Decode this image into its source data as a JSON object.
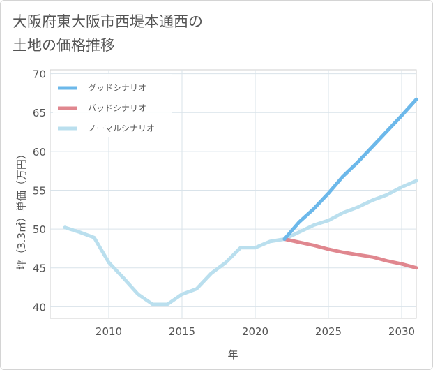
{
  "chart_data": {
    "type": "line",
    "title_lines": [
      "大阪府東大阪市西堤本通西の",
      "土地の価格推移"
    ],
    "xlabel": "年",
    "ylabel": "坪（3.3㎡）単価（万円）",
    "xlim": [
      2006,
      2031
    ],
    "ylim": [
      38.5,
      70.5
    ],
    "x_ticks": [
      2010,
      2015,
      2020,
      2025,
      2030
    ],
    "y_ticks": [
      40,
      45,
      50,
      55,
      60,
      65,
      70
    ],
    "grid": true,
    "legend_position": "top-left",
    "series": [
      {
        "name": "グッドシナリオ",
        "color": "#6cb8ea",
        "x": [
          2022,
          2023,
          2024,
          2025,
          2026,
          2027,
          2028,
          2029,
          2030,
          2031
        ],
        "y": [
          48.7,
          50.9,
          52.6,
          54.6,
          56.8,
          58.6,
          60.6,
          62.6,
          64.6,
          66.7
        ]
      },
      {
        "name": "バッドシナリオ",
        "color": "#e0878f",
        "x": [
          2022,
          2023,
          2024,
          2025,
          2026,
          2027,
          2028,
          2029,
          2030,
          2031
        ],
        "y": [
          48.7,
          48.3,
          47.9,
          47.4,
          47.0,
          46.7,
          46.4,
          45.9,
          45.5,
          45.0
        ]
      },
      {
        "name": "ノーマルシナリオ",
        "color": "#badfee",
        "x": [
          2007,
          2008,
          2009,
          2010,
          2011,
          2012,
          2013,
          2014,
          2015,
          2016,
          2017,
          2018,
          2019,
          2020,
          2021,
          2022,
          2023,
          2024,
          2025,
          2026,
          2027,
          2028,
          2029,
          2030,
          2031
        ],
        "y": [
          50.2,
          49.6,
          48.9,
          45.7,
          43.7,
          41.6,
          40.3,
          40.3,
          41.6,
          42.3,
          44.3,
          45.7,
          47.6,
          47.6,
          48.4,
          48.7,
          49.6,
          50.5,
          51.1,
          52.1,
          52.8,
          53.7,
          54.4,
          55.4,
          56.2
        ]
      }
    ]
  }
}
